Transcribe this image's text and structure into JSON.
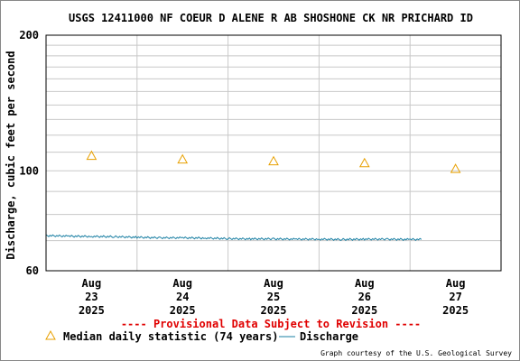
{
  "chart_data": {
    "type": "line",
    "title": "USGS 12411000 NF COEUR D ALENE R AB SHOSHONE CK NR PRICHARD ID",
    "ylabel": "Discharge, cubic feet per second",
    "y_scale": "log",
    "ylim": [
      60,
      200
    ],
    "y_ticks": [
      60,
      100,
      200
    ],
    "x_ticks": [
      {
        "date": "2025-08-23",
        "label": [
          "Aug",
          "23",
          "2025"
        ]
      },
      {
        "date": "2025-08-24",
        "label": [
          "Aug",
          "24",
          "2025"
        ]
      },
      {
        "date": "2025-08-25",
        "label": [
          "Aug",
          "25",
          "2025"
        ]
      },
      {
        "date": "2025-08-26",
        "label": [
          "Aug",
          "26",
          "2025"
        ]
      },
      {
        "date": "2025-08-27",
        "label": [
          "Aug",
          "27",
          "2025"
        ]
      }
    ],
    "xlim": [
      "2025-08-23T00:00",
      "2025-08-28T00:00"
    ],
    "grid": true,
    "series": [
      {
        "name": "Median daily statistic (74 years)",
        "marker": "triangle",
        "color": "#e8a000",
        "points": [
          {
            "x": "2025-08-23T12:00",
            "y": 108
          },
          {
            "x": "2025-08-24T12:00",
            "y": 106
          },
          {
            "x": "2025-08-25T12:00",
            "y": 105
          },
          {
            "x": "2025-08-26T12:00",
            "y": 104
          },
          {
            "x": "2025-08-27T12:00",
            "y": 101
          }
        ]
      },
      {
        "name": "Discharge",
        "color": "#1a7fa3",
        "points": [
          {
            "x": "2025-08-23T00:00",
            "y": 71.8
          },
          {
            "x": "2025-08-23T06:00",
            "y": 71.6
          },
          {
            "x": "2025-08-23T12:00",
            "y": 71.5
          },
          {
            "x": "2025-08-23T18:00",
            "y": 71.4
          },
          {
            "x": "2025-08-24T00:00",
            "y": 71.2
          },
          {
            "x": "2025-08-24T06:00",
            "y": 71.0
          },
          {
            "x": "2025-08-24T12:00",
            "y": 71.0
          },
          {
            "x": "2025-08-24T18:00",
            "y": 70.9
          },
          {
            "x": "2025-08-25T00:00",
            "y": 70.7
          },
          {
            "x": "2025-08-25T06:00",
            "y": 70.6
          },
          {
            "x": "2025-08-25T12:00",
            "y": 70.6
          },
          {
            "x": "2025-08-25T18:00",
            "y": 70.5
          },
          {
            "x": "2025-08-26T00:00",
            "y": 70.5
          },
          {
            "x": "2025-08-26T06:00",
            "y": 70.4
          },
          {
            "x": "2025-08-26T12:00",
            "y": 70.5
          },
          {
            "x": "2025-08-26T18:00",
            "y": 70.5
          },
          {
            "x": "2025-08-27T00:00",
            "y": 70.4
          },
          {
            "x": "2025-08-27T03:00",
            "y": 70.4
          }
        ]
      }
    ]
  },
  "footer": {
    "provisional": "---- Provisional Data Subject to Revision ----",
    "legend_median": "Median daily statistic (74 years)",
    "legend_discharge": "Discharge",
    "credit": "Graph courtesy of the U.S. Geological Survey"
  },
  "colors": {
    "provisional": "#e00000",
    "median_marker": "#e8a000",
    "discharge_line": "#1a7fa3",
    "grid": "#c8c8c8"
  }
}
